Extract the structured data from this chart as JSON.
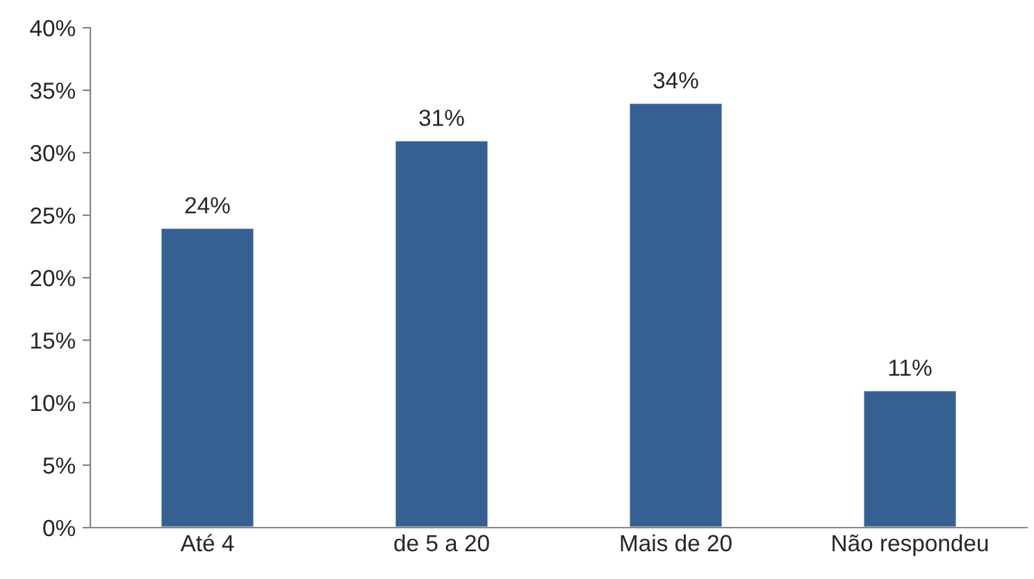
{
  "chart_data": {
    "type": "bar",
    "categories": [
      "Até 4",
      "de 5 a 20",
      "Mais de 20",
      "Não respondeu"
    ],
    "values": [
      24,
      31,
      34,
      11
    ],
    "color": "#376092",
    "value_labels": [
      "24%",
      "31%",
      "34%",
      "11%"
    ],
    "ylim": [
      0,
      40
    ],
    "yticks": [
      {
        "value": 0,
        "label": "0%"
      },
      {
        "value": 5,
        "label": "5%"
      },
      {
        "value": 10,
        "label": "10%"
      },
      {
        "value": 15,
        "label": "15%"
      },
      {
        "value": 20,
        "label": "20%"
      },
      {
        "value": 25,
        "label": "25%"
      },
      {
        "value": 30,
        "label": "30%"
      },
      {
        "value": 35,
        "label": "35%"
      },
      {
        "value": 40,
        "label": "40%"
      }
    ],
    "grid": false
  }
}
